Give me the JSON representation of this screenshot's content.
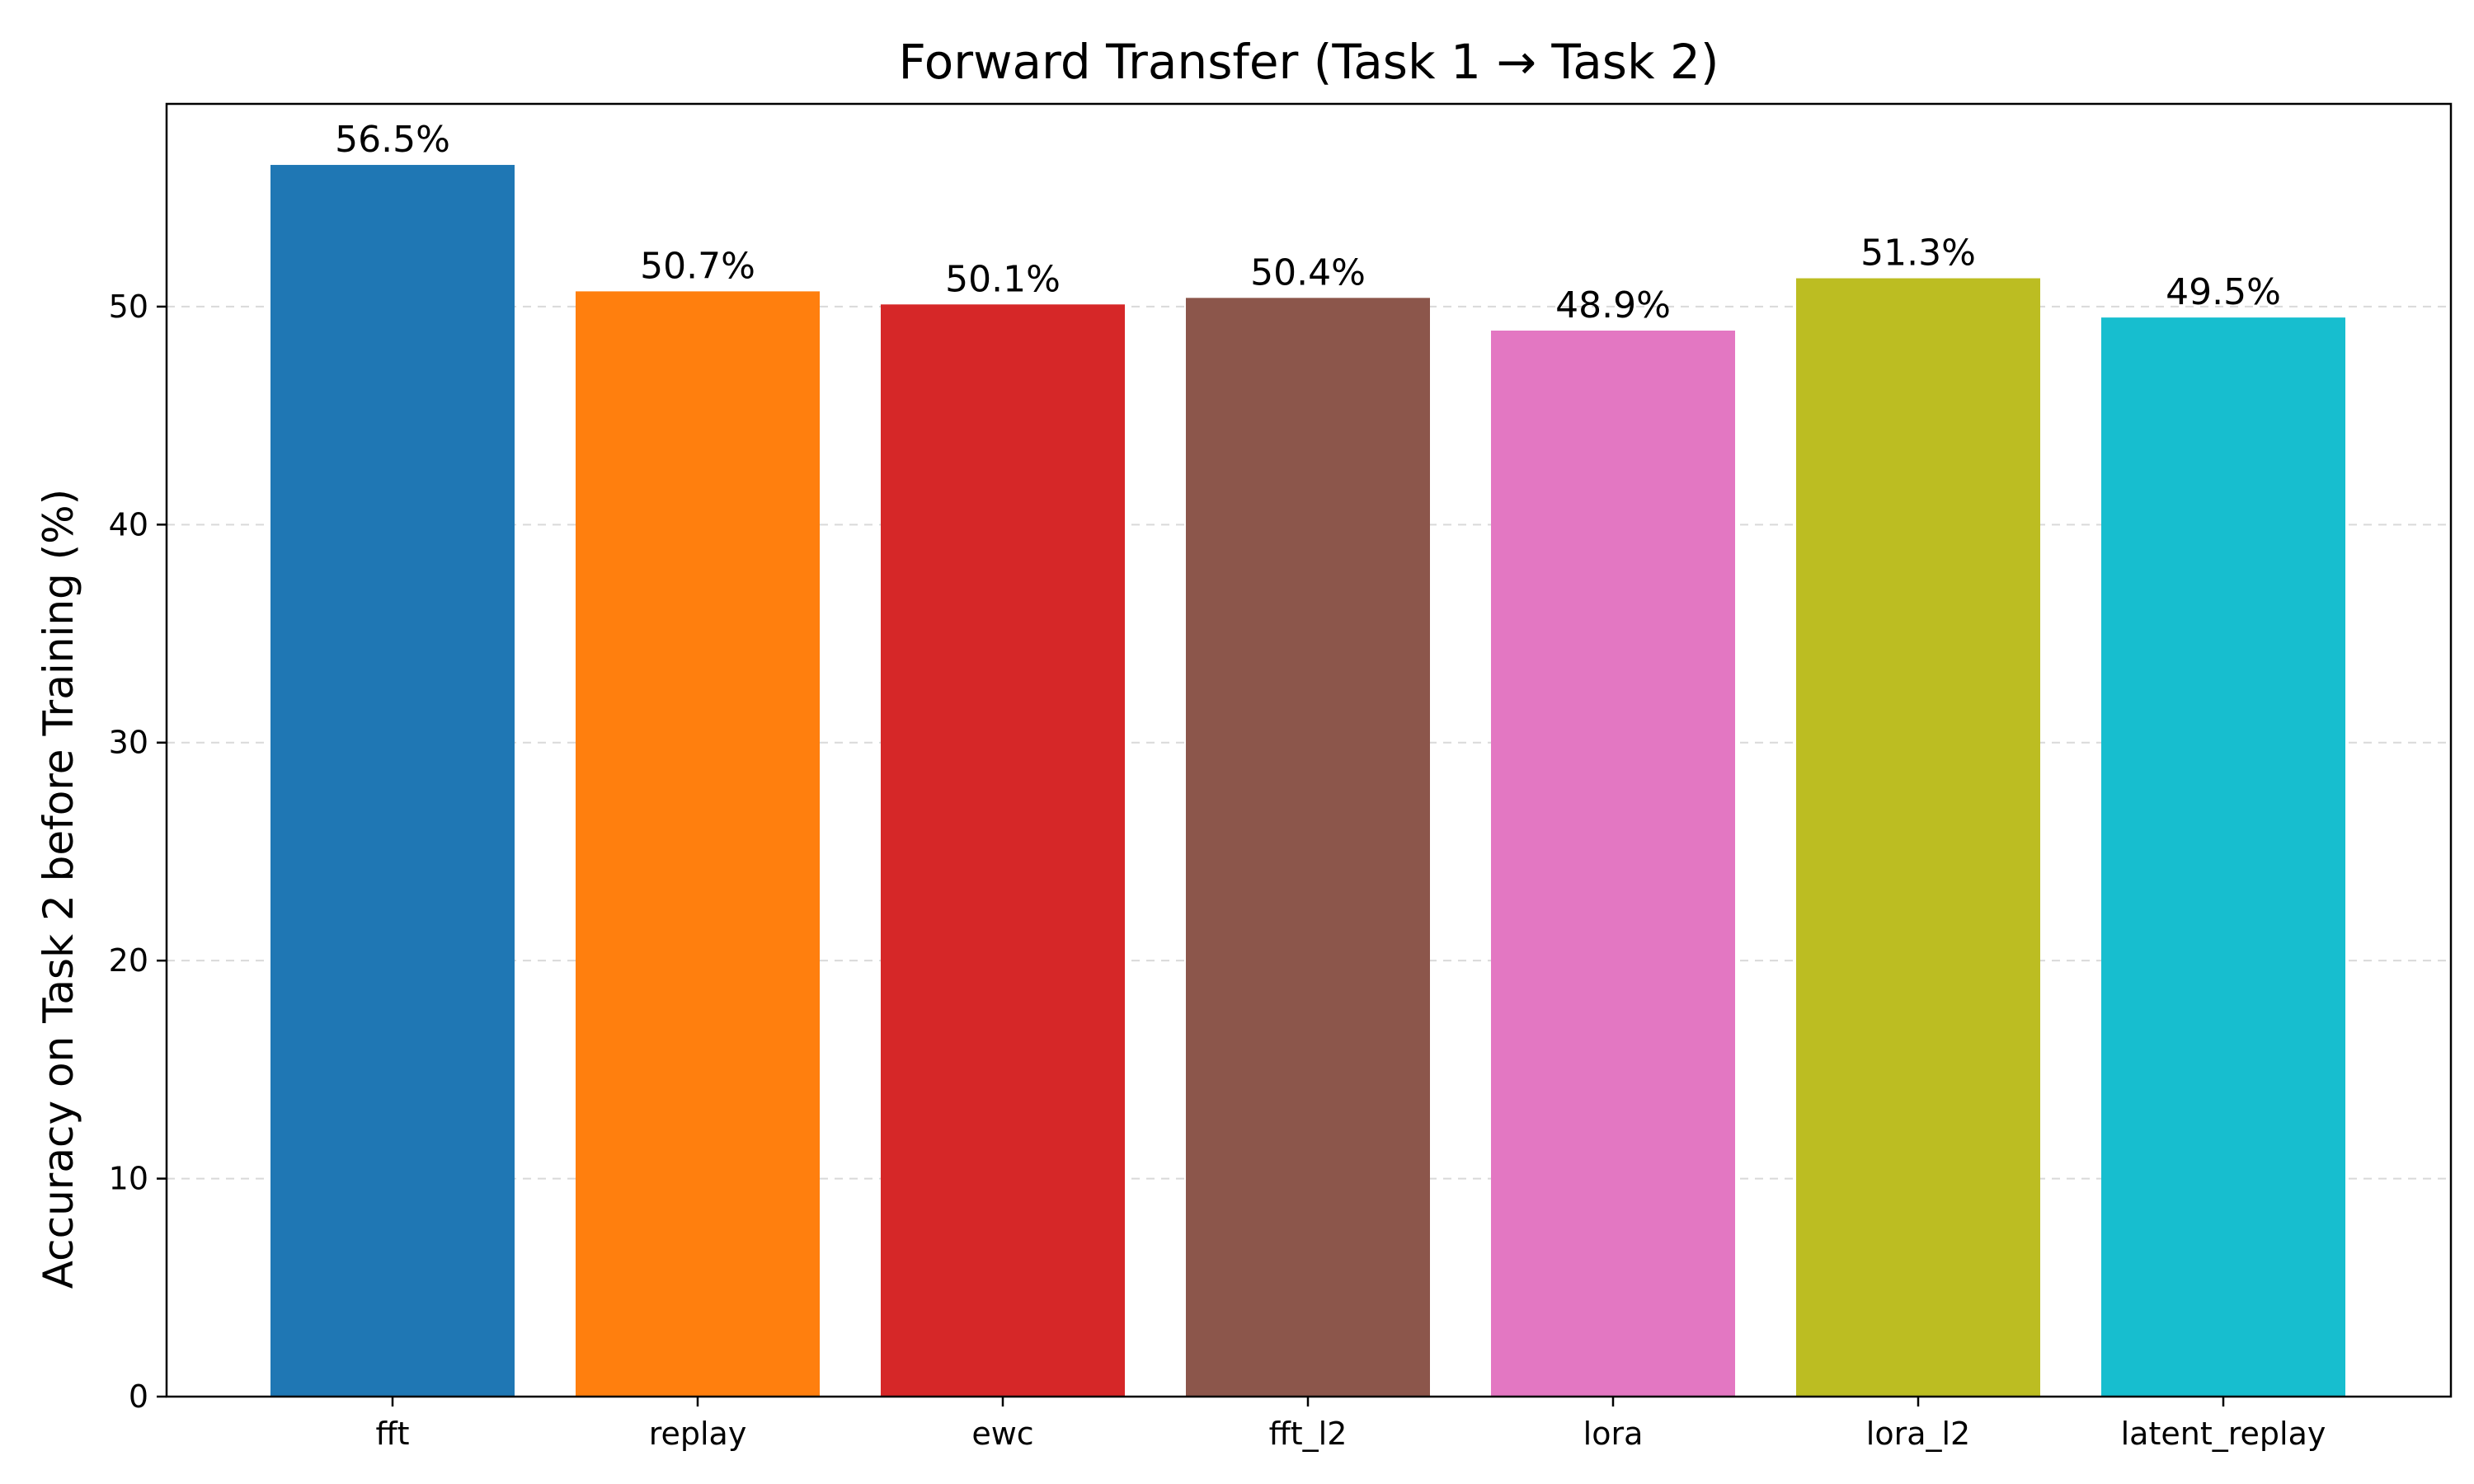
{
  "chart_data": {
    "type": "bar",
    "title": "Forward Transfer (Task 1 → Task 2)",
    "xlabel": "",
    "ylabel": "Accuracy on Task 2 before Training (%)",
    "categories": [
      "fft",
      "replay",
      "ewc",
      "fft_l2",
      "lora",
      "lora_l2",
      "latent_replay"
    ],
    "values": [
      56.5,
      50.7,
      50.1,
      50.4,
      48.9,
      51.3,
      49.5
    ],
    "value_labels": [
      "56.5%",
      "50.7%",
      "50.1%",
      "50.4%",
      "48.9%",
      "51.3%",
      "49.5%"
    ],
    "colors": [
      "#1f77b4",
      "#ff7f0e",
      "#d62728",
      "#8c564b",
      "#e377c2",
      "#bcbd22",
      "#17becf"
    ],
    "ylim": [
      0,
      59.3
    ],
    "yticks": [
      0,
      10,
      20,
      30,
      40,
      50
    ],
    "grid": true
  }
}
